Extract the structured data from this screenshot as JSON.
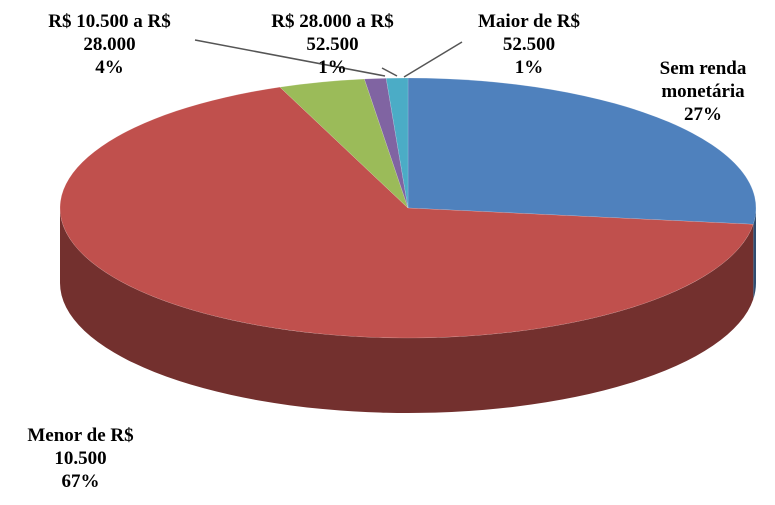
{
  "chart_data": {
    "type": "pie",
    "categories": [
      "Sem renda monetária",
      "Menor de R$ 10.500",
      "R$ 10.500 a R$ 28.000",
      "R$ 28.000 a R$ 52.500",
      "Maior de R$ 52.500"
    ],
    "values": [
      27,
      67,
      4,
      1,
      1
    ],
    "value_labels": [
      "27%",
      "67%",
      "4%",
      "1%",
      "1%"
    ],
    "colors": [
      "#4f81bd",
      "#c0504d",
      "#9bbb59",
      "#8064a2",
      "#4bacc6"
    ]
  }
}
